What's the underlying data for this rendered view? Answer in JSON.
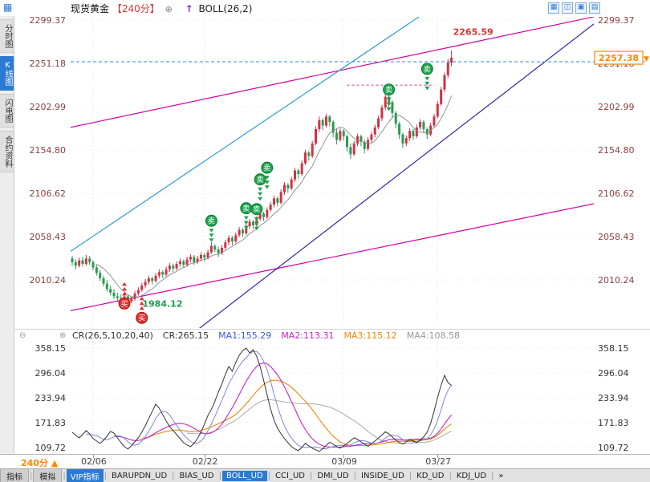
{
  "colors": {
    "accent": "#2b7bd4",
    "up": "#cf3344",
    "down": "#2a9a52",
    "magenta": "#d4009a",
    "cyan": "#2f9bd6",
    "navy": "#2a2aa8",
    "orange": "#ff8800",
    "axis_main": "#8a4040",
    "axis_sub": "#333333"
  },
  "header": {
    "corner_icon": "▦",
    "symbol": "现货黄金",
    "period": "【240分】",
    "plus_icon": "⊕",
    "arrow_icon": "↑",
    "indicator": "BOLL(26,2)",
    "window_icons": [
      "▦",
      "◫",
      "▣",
      "▤"
    ]
  },
  "sidebar": {
    "items": [
      {
        "label": "分时图",
        "active": false
      },
      {
        "label": "K线图",
        "active": true
      },
      {
        "label": "闪电图",
        "active": false
      },
      {
        "label": "合约资料",
        "active": false
      }
    ]
  },
  "chart_data": {
    "type": "candlestick",
    "title": "现货黄金 240分 K线图 BOLL(26,2)",
    "y_axis_labels": [
      "2299.37",
      "2251.18",
      "2202.99",
      "2154.80",
      "2106.62",
      "2058.43",
      "2010.24"
    ],
    "x_ticks": [
      {
        "label": "02/06",
        "bar": 6
      },
      {
        "label": "02/22",
        "bar": 38
      },
      {
        "label": "03/09",
        "bar": 78
      },
      {
        "label": "03/27",
        "bar": 105
      }
    ],
    "last_price": "2257.38",
    "last_price_arrow": "▼",
    "high_label": {
      "text": "2265.59",
      "bar": 109,
      "price": 2283
    },
    "low_label": {
      "text": "1984.12",
      "bar": 19,
      "price": 1984
    },
    "price_line": {
      "price": 2253.0
    },
    "resistance_line": {
      "price": 2227,
      "bar1": 79,
      "bar2": 104
    },
    "trendlines": [
      {
        "f1": 0.0,
        "p1": 2180,
        "f2": 1.0,
        "p2": 2303,
        "color": "#d4009a"
      },
      {
        "f1": 0.0,
        "p1": 1976,
        "f2": 1.0,
        "p2": 2095,
        "color": "#d4009a"
      },
      {
        "f1": 0.0,
        "p1": 2042,
        "f2": 0.75,
        "p2": 2336,
        "color": "#2f9bd6"
      },
      {
        "f1": 0.241,
        "p1": 1954,
        "f2": 1.0,
        "p2": 2295,
        "color": "#2a2aa8"
      }
    ],
    "signals": {
      "sell_label": "卖",
      "buy_label": "买",
      "sell": [
        {
          "bar": 40,
          "price": 2076
        },
        {
          "bar": 50,
          "price": 2090
        },
        {
          "bar": 53,
          "price": 2089
        },
        {
          "bar": 54,
          "price": 2122
        },
        {
          "bar": 56,
          "price": 2135
        },
        {
          "bar": 91,
          "price": 2222
        },
        {
          "bar": 102,
          "price": 2245
        }
      ],
      "buy": [
        {
          "bar": 15,
          "price": 1984
        },
        {
          "bar": 20,
          "price": 1968
        }
      ]
    },
    "candles_ohlc": [
      [
        2034,
        2037,
        2026,
        2030
      ],
      [
        2030,
        2033,
        2022,
        2026
      ],
      [
        2026,
        2035,
        2024,
        2032
      ],
      [
        2032,
        2036,
        2025,
        2028
      ],
      [
        2028,
        2038,
        2026,
        2034
      ],
      [
        2034,
        2037,
        2027,
        2030
      ],
      [
        2030,
        2032,
        2021,
        2024
      ],
      [
        2024,
        2027,
        2015,
        2018
      ],
      [
        2018,
        2021,
        2009,
        2012
      ],
      [
        2012,
        2015,
        2003,
        2006
      ],
      [
        2006,
        2010,
        1997,
        2000
      ],
      [
        2000,
        2004,
        1993,
        1996
      ],
      [
        1996,
        2000,
        1989,
        1992
      ],
      [
        1992,
        1996,
        1987,
        1990
      ],
      [
        1990,
        1994,
        1985,
        1988
      ],
      [
        1988,
        1995,
        1986,
        1992
      ],
      [
        1992,
        1994,
        1984.12,
        1986
      ],
      [
        1986,
        1992,
        1984.5,
        1989
      ],
      [
        1989,
        1998,
        1987,
        1995
      ],
      [
        1995,
        2002,
        1993,
        1999
      ],
      [
        1999,
        2007,
        1997,
        2004
      ],
      [
        2004,
        2011,
        2001,
        2008
      ],
      [
        2008,
        2015,
        2005,
        2012
      ],
      [
        2012,
        2014,
        2005,
        2009
      ],
      [
        2009,
        2018,
        2007,
        2015
      ],
      [
        2015,
        2022,
        2012,
        2019
      ],
      [
        2019,
        2021,
        2012,
        2016
      ],
      [
        2016,
        2025,
        2014,
        2022
      ],
      [
        2022,
        2029,
        2019,
        2026
      ],
      [
        2026,
        2028,
        2019,
        2023
      ],
      [
        2023,
        2031,
        2021,
        2028
      ],
      [
        2028,
        2034,
        2025,
        2031
      ],
      [
        2031,
        2033,
        2024,
        2027
      ],
      [
        2027,
        2036,
        2025,
        2033
      ],
      [
        2033,
        2039,
        2030,
        2036
      ],
      [
        2036,
        2038,
        2027,
        2030
      ],
      [
        2030,
        2037,
        2028,
        2034
      ],
      [
        2034,
        2041,
        2031,
        2038
      ],
      [
        2038,
        2040,
        2031,
        2035
      ],
      [
        2035,
        2044,
        2033,
        2041
      ],
      [
        2041,
        2052,
        2039,
        2048
      ],
      [
        2048,
        2050,
        2041,
        2044
      ],
      [
        2044,
        2047,
        2036,
        2040
      ],
      [
        2040,
        2049,
        2038,
        2046
      ],
      [
        2046,
        2055,
        2044,
        2052
      ],
      [
        2052,
        2060,
        2049,
        2057
      ],
      [
        2057,
        2059,
        2049,
        2053
      ],
      [
        2053,
        2063,
        2051,
        2060
      ],
      [
        2060,
        2069,
        2058,
        2066
      ],
      [
        2066,
        2068,
        2058,
        2062
      ],
      [
        2062,
        2073,
        2060,
        2070
      ],
      [
        2070,
        2078,
        2067,
        2075
      ],
      [
        2075,
        2077,
        2067,
        2071
      ],
      [
        2071,
        2081,
        2069,
        2078
      ],
      [
        2078,
        2087,
        2076,
        2084
      ],
      [
        2084,
        2086,
        2076,
        2080
      ],
      [
        2080,
        2091,
        2078,
        2088
      ],
      [
        2088,
        2097,
        2086,
        2094
      ],
      [
        2094,
        2104,
        2091,
        2101
      ],
      [
        2101,
        2103,
        2092,
        2096
      ],
      [
        2096,
        2111,
        2094,
        2108
      ],
      [
        2108,
        2119,
        2105,
        2116
      ],
      [
        2116,
        2118,
        2107,
        2112
      ],
      [
        2112,
        2125,
        2110,
        2122
      ],
      [
        2122,
        2135,
        2119,
        2132
      ],
      [
        2132,
        2134,
        2123,
        2128
      ],
      [
        2128,
        2143,
        2126,
        2140
      ],
      [
        2140,
        2155,
        2138,
        2152
      ],
      [
        2152,
        2154,
        2143,
        2148
      ],
      [
        2148,
        2165,
        2146,
        2162
      ],
      [
        2162,
        2181,
        2160,
        2178
      ],
      [
        2178,
        2192,
        2175,
        2188
      ],
      [
        2188,
        2190,
        2177,
        2182
      ],
      [
        2182,
        2195,
        2180,
        2192
      ],
      [
        2192,
        2194,
        2181,
        2186
      ],
      [
        2186,
        2188,
        2169,
        2174
      ],
      [
        2174,
        2178,
        2161,
        2166
      ],
      [
        2166,
        2179,
        2164,
        2176
      ],
      [
        2176,
        2178,
        2165,
        2170
      ],
      [
        2170,
        2172,
        2153,
        2158
      ],
      [
        2158,
        2162,
        2145,
        2150
      ],
      [
        2150,
        2165,
        2148,
        2162
      ],
      [
        2162,
        2173,
        2159,
        2170
      ],
      [
        2170,
        2172,
        2159,
        2164
      ],
      [
        2164,
        2166,
        2151,
        2156
      ],
      [
        2156,
        2169,
        2154,
        2166
      ],
      [
        2166,
        2175,
        2163,
        2172
      ],
      [
        2172,
        2183,
        2169,
        2180
      ],
      [
        2180,
        2193,
        2178,
        2190
      ],
      [
        2190,
        2205,
        2187,
        2202
      ],
      [
        2202,
        2217,
        2199,
        2214
      ],
      [
        2214,
        2216,
        2203,
        2208
      ],
      [
        2208,
        2210,
        2191,
        2196
      ],
      [
        2196,
        2198,
        2179,
        2184
      ],
      [
        2184,
        2186,
        2167,
        2172
      ],
      [
        2172,
        2174,
        2157,
        2162
      ],
      [
        2162,
        2171,
        2159,
        2168
      ],
      [
        2168,
        2179,
        2165,
        2176
      ],
      [
        2176,
        2178,
        2166,
        2170
      ],
      [
        2170,
        2183,
        2168,
        2180
      ],
      [
        2180,
        2189,
        2177,
        2186
      ],
      [
        2186,
        2188,
        2174,
        2178
      ],
      [
        2178,
        2180,
        2167,
        2172
      ],
      [
        2172,
        2185,
        2170,
        2182
      ],
      [
        2182,
        2195,
        2180,
        2192
      ],
      [
        2192,
        2209,
        2190,
        2206
      ],
      [
        2206,
        2225,
        2204,
        2222
      ],
      [
        2222,
        2241,
        2219,
        2238
      ],
      [
        2238,
        2256,
        2235,
        2252
      ],
      [
        2252,
        2265.59,
        2248,
        2257.38
      ]
    ]
  },
  "sub_chart": {
    "collapse_icon": "⊖",
    "cycle_icon": "⊕",
    "legend": [
      {
        "text": "CR(26,5,10,20,40)",
        "color": "#333333"
      },
      {
        "text": "CR:265.15",
        "color": "#333333"
      },
      {
        "text": "MA1:155.29",
        "color": "#3b5bd6"
      },
      {
        "text": "MA2:113.31",
        "color": "#cc22cc"
      },
      {
        "text": "MA3:115.12",
        "color": "#ee8800"
      },
      {
        "text": "MA4:108.58",
        "color": "#999999"
      }
    ],
    "y_axis_labels": [
      "358.15",
      "296.04",
      "233.94",
      "171.83",
      "109.72"
    ],
    "line_colors": {
      "cr": "#333333",
      "ma1": "#7b8bd0",
      "ma2": "#cc22cc",
      "ma3": "#ee8800",
      "ma4": "#aaaaaa"
    },
    "cr_values": [
      148,
      140,
      134,
      142,
      152,
      144,
      132,
      126,
      120,
      128,
      138,
      150,
      146,
      134,
      122,
      112,
      106,
      114,
      124,
      134,
      148,
      164,
      182,
      200,
      218,
      208,
      192,
      176,
      162,
      152,
      142,
      132,
      122,
      116,
      112,
      120,
      132,
      148,
      168,
      190,
      205,
      225,
      248,
      268,
      292,
      312,
      300,
      322,
      340,
      352,
      358,
      346,
      354,
      338,
      312,
      278,
      242,
      206,
      178,
      158,
      144,
      132,
      122,
      112,
      106,
      102,
      110,
      120,
      114,
      108,
      104,
      100,
      107,
      115,
      123,
      118,
      112,
      108,
      114,
      120,
      127,
      134,
      130,
      124,
      118,
      113,
      119,
      126,
      133,
      141,
      149,
      144,
      136,
      128,
      122,
      118,
      124,
      130,
      126,
      122,
      128,
      136,
      148,
      170,
      200,
      235,
      265,
      290,
      272,
      265
    ]
  },
  "bottom": {
    "period_label": "240分",
    "period_arrow": "▲"
  },
  "toolbar": {
    "separator": "|",
    "items": [
      {
        "label": "指标",
        "style": "tab"
      },
      {
        "label": "模拟",
        "style": "tab"
      },
      {
        "label": "VIP指标",
        "style": "active"
      },
      {
        "label": "BARUPDN_UD",
        "style": ""
      },
      {
        "label": "BIAS_UD",
        "style": ""
      },
      {
        "label": "BOLL_UD",
        "style": "active"
      },
      {
        "label": "CCI_UD",
        "style": ""
      },
      {
        "label": "DMI_UD",
        "style": ""
      },
      {
        "label": "INSIDE_UD",
        "style": ""
      },
      {
        "label": "KD_UD",
        "style": ""
      },
      {
        "label": "KDJ_UD",
        "style": ""
      },
      {
        "label": "»",
        "style": ""
      }
    ]
  }
}
